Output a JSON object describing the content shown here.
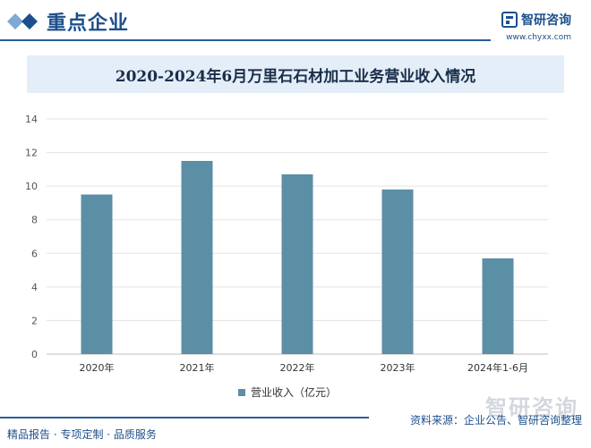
{
  "header": {
    "title": "重点企业",
    "brand_name": "智研咨询",
    "brand_url": "www.chyxx.com"
  },
  "colors": {
    "bar": "#5b8fa6",
    "accent": "#1d4f8c",
    "title_band": "#e4eef8"
  },
  "chart_data": {
    "type": "bar",
    "title": "2020-2024年6月万里石石材加工业务营业收入情况",
    "categories": [
      "2020年",
      "2021年",
      "2022年",
      "2023年",
      "2024年1-6月"
    ],
    "series": [
      {
        "name": "营业收入（亿元）",
        "values": [
          9.5,
          11.5,
          10.7,
          9.8,
          5.7
        ]
      }
    ],
    "ylim": [
      0,
      14
    ],
    "yticks": [
      0,
      2,
      4,
      6,
      8,
      10,
      12,
      14
    ],
    "grid": true,
    "legend": "bottom"
  },
  "footer": {
    "left": "精品报告 · 专项定制 · 品质服务",
    "source": "资料来源：企业公告、智研咨询整理",
    "watermark": "智研咨询"
  }
}
